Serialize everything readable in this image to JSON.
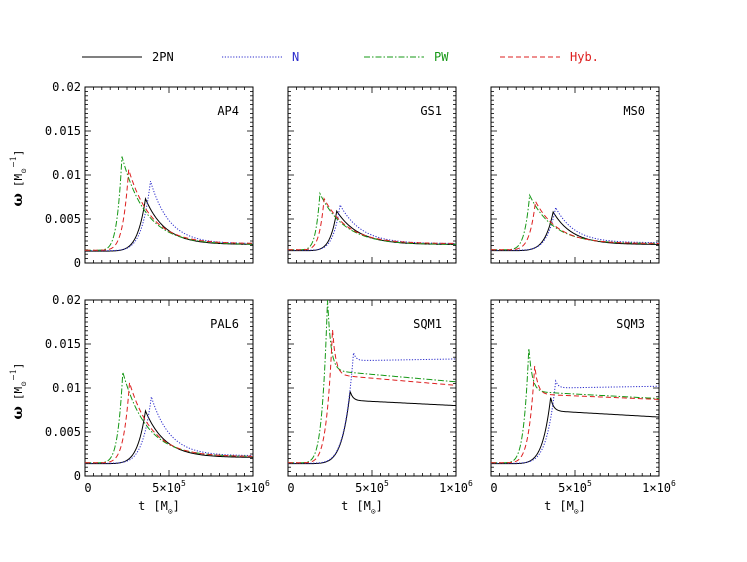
{
  "chart_data": {
    "type": "line",
    "legend": {
      "placement": "top",
      "entries": [
        {
          "label": "2PN",
          "color": "#000000",
          "dash": "solid"
        },
        {
          "label": "N",
          "color": "#2b2bcc",
          "dash": "dotted"
        },
        {
          "label": "PW",
          "color": "#169816",
          "dash": "dashdot"
        },
        {
          "label": "Hyb.",
          "color": "#dd1f1f",
          "dash": "dashed"
        }
      ]
    },
    "xlim": [
      0,
      1000000
    ],
    "ylim": [
      0,
      0.02
    ],
    "x_tick_labels": [
      "0",
      "5×10",
      "1×10"
    ],
    "x_tick_exponents": [
      "",
      "5",
      "6"
    ],
    "y_tick_labels": [
      "0",
      "0.005",
      "0.01",
      "0.015",
      "0.02"
    ],
    "ylabel": {
      "symbol": "ω",
      "units_open": "[M",
      "units_sub": "⊙",
      "units_exp": "−1",
      "units_close": "]"
    },
    "xlabel": {
      "symbol": "t",
      "units_open": "[M",
      "units_sub": "⊙",
      "units_close": "]"
    },
    "panels": [
      {
        "name": "AP4",
        "series": [
          {
            "name": "2PN",
            "t0": 0,
            "w0": 0.00135,
            "t_peak": 360000,
            "w_peak": 0.0073,
            "w_end": 0.0021
          },
          {
            "name": "N",
            "t0": 0,
            "w0": 0.0014,
            "t_peak": 390000,
            "w_peak": 0.0093,
            "w_end": 0.0022
          },
          {
            "name": "PW",
            "t0": 0,
            "w0": 0.00145,
            "t_peak": 220000,
            "w_peak": 0.0121,
            "w_end": 0.0021
          },
          {
            "name": "Hyb.",
            "t0": 0,
            "w0": 0.00145,
            "t_peak": 260000,
            "w_peak": 0.0106,
            "w_end": 0.0022
          }
        ]
      },
      {
        "name": "GS1",
        "series": [
          {
            "name": "2PN",
            "t0": 0,
            "w0": 0.0014,
            "t_peak": 290000,
            "w_peak": 0.0059,
            "w_end": 0.0021
          },
          {
            "name": "N",
            "t0": 0,
            "w0": 0.00145,
            "t_peak": 310000,
            "w_peak": 0.0066,
            "w_end": 0.0022
          },
          {
            "name": "PW",
            "t0": 0,
            "w0": 0.0015,
            "t_peak": 190000,
            "w_peak": 0.0079,
            "w_end": 0.0021
          },
          {
            "name": "Hyb.",
            "t0": 0,
            "w0": 0.0015,
            "t_peak": 215000,
            "w_peak": 0.0073,
            "w_end": 0.0022
          }
        ]
      },
      {
        "name": "MS0",
        "series": [
          {
            "name": "2PN",
            "t0": 0,
            "w0": 0.0014,
            "t_peak": 370000,
            "w_peak": 0.0058,
            "w_end": 0.0021
          },
          {
            "name": "N",
            "t0": 0,
            "w0": 0.00145,
            "t_peak": 385000,
            "w_peak": 0.0063,
            "w_end": 0.0023
          },
          {
            "name": "PW",
            "t0": 0,
            "w0": 0.0015,
            "t_peak": 230000,
            "w_peak": 0.0077,
            "w_end": 0.0022
          },
          {
            "name": "Hyb.",
            "t0": 0,
            "w0": 0.0015,
            "t_peak": 265000,
            "w_peak": 0.007,
            "w_end": 0.0022
          }
        ]
      },
      {
        "name": "PAL6",
        "series": [
          {
            "name": "2PN",
            "t0": 0,
            "w0": 0.0014,
            "t_peak": 360000,
            "w_peak": 0.0074,
            "w_end": 0.0021
          },
          {
            "name": "N",
            "t0": 0,
            "w0": 0.00145,
            "t_peak": 395000,
            "w_peak": 0.009,
            "w_end": 0.0023
          },
          {
            "name": "PW",
            "t0": 0,
            "w0": 0.0015,
            "t_peak": 225000,
            "w_peak": 0.0118,
            "w_end": 0.0022
          },
          {
            "name": "Hyb.",
            "t0": 0,
            "w0": 0.0015,
            "t_peak": 265000,
            "w_peak": 0.0106,
            "w_end": 0.0022
          }
        ]
      },
      {
        "name": "SQM1",
        "series": [
          {
            "name": "2PN",
            "t0": 0,
            "w0": 0.0014,
            "t_peak": 370000,
            "w_peak": 0.0096,
            "w_plateau": 0.0086,
            "w_end": 0.008
          },
          {
            "name": "N",
            "t0": 0,
            "w0": 0.00145,
            "t_peak": 390000,
            "w_peak": 0.014,
            "w_plateau": 0.0131,
            "w_end": 0.0133
          },
          {
            "name": "PW",
            "t0": 0,
            "w0": 0.0015,
            "t_peak": 235000,
            "w_peak": 0.02,
            "w_plateau": 0.012,
            "w_end": 0.0107
          },
          {
            "name": "Hyb.",
            "t0": 0,
            "w0": 0.0015,
            "t_peak": 265000,
            "w_peak": 0.0166,
            "w_plateau": 0.0115,
            "w_end": 0.0103
          }
        ]
      },
      {
        "name": "SQM3",
        "series": [
          {
            "name": "2PN",
            "t0": 0,
            "w0": 0.0014,
            "t_peak": 355000,
            "w_peak": 0.0089,
            "w_plateau": 0.0074,
            "w_end": 0.0067
          },
          {
            "name": "N",
            "t0": 0,
            "w0": 0.00145,
            "t_peak": 385000,
            "w_peak": 0.0108,
            "w_plateau": 0.01,
            "w_end": 0.0102
          },
          {
            "name": "PW",
            "t0": 0,
            "w0": 0.0015,
            "t_peak": 225000,
            "w_peak": 0.0145,
            "w_plateau": 0.0096,
            "w_end": 0.0088
          },
          {
            "name": "Hyb.",
            "t0": 0,
            "w0": 0.0015,
            "t_peak": 260000,
            "w_peak": 0.0125,
            "w_plateau": 0.0093,
            "w_end": 0.0087
          }
        ]
      }
    ]
  }
}
